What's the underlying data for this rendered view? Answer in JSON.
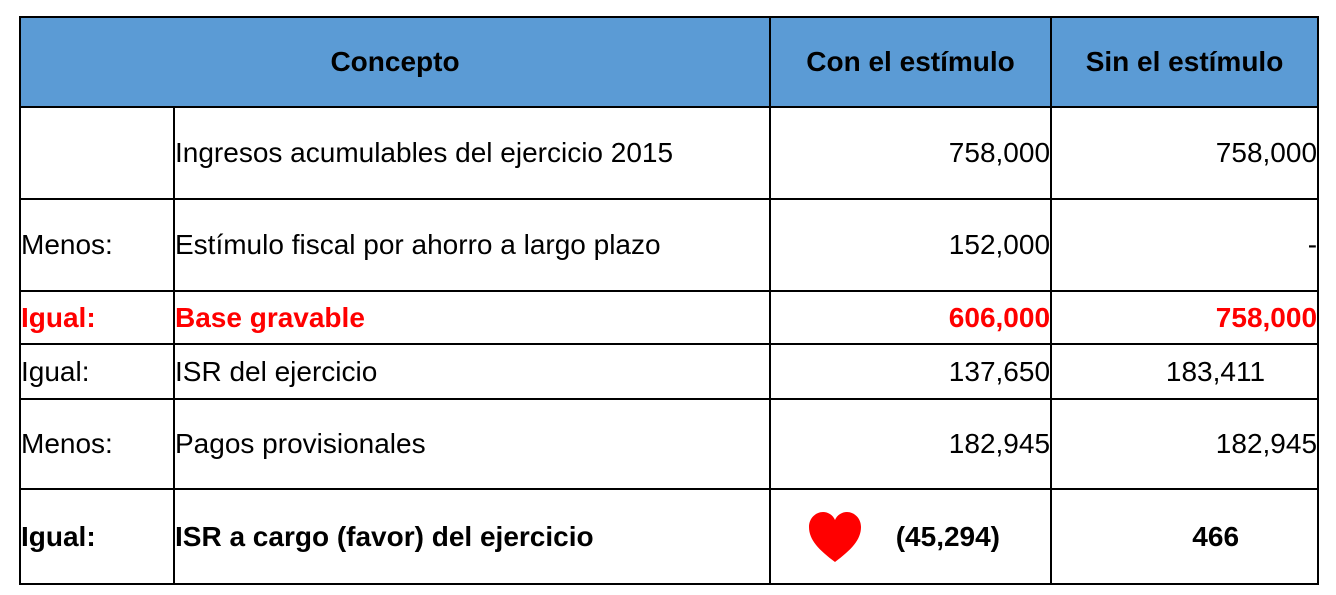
{
  "header": {
    "concepto": "Concepto",
    "con": "Con el estímulo",
    "sin": "Sin el estímulo"
  },
  "rows": [
    {
      "label": "",
      "concept": "Ingresos acumulables del ejercicio 2015",
      "con": "758,000",
      "sin": "758,000"
    },
    {
      "label": "Menos:",
      "concept": "Estímulo fiscal por ahorro a largo plazo",
      "con": "152,000",
      "sin": "-"
    },
    {
      "label": "Igual:",
      "concept": "Base gravable",
      "con": "606,000",
      "sin": "758,000"
    },
    {
      "label": "Igual:",
      "concept": "ISR del ejercicio",
      "con": "137,650",
      "sin": "183,411"
    },
    {
      "label": "Menos:",
      "concept": "Pagos provisionales",
      "con": "182,945",
      "sin": "182,945"
    },
    {
      "label": "Igual:",
      "concept": "ISR a cargo (favor) del ejercicio",
      "con": "(45,294)",
      "sin": "466"
    }
  ],
  "colors": {
    "header_bg": "#5b9bd5",
    "highlight_text": "#ff0000",
    "heart": "#ff0000"
  },
  "icons": {
    "favor_marker": "heart-icon"
  }
}
